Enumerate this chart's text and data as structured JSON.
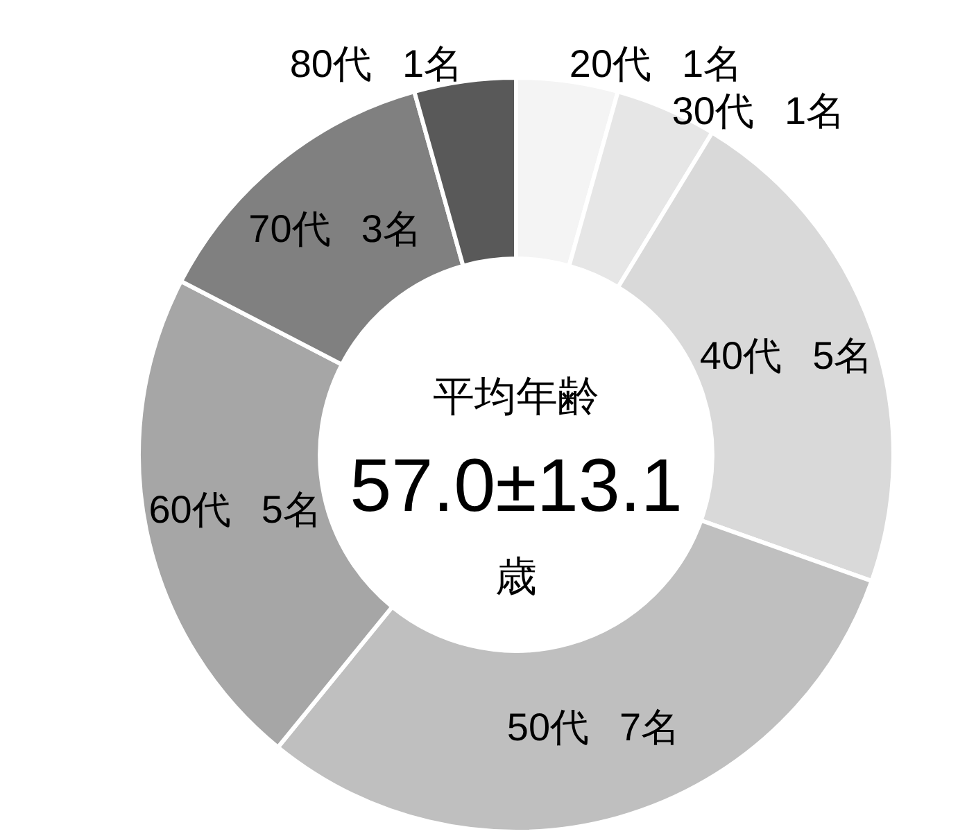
{
  "chart_data": {
    "type": "donut",
    "categories": [
      "20代",
      "30代",
      "40代",
      "50代",
      "60代",
      "70代",
      "80代"
    ],
    "values": [
      1,
      1,
      5,
      7,
      5,
      3,
      1
    ],
    "value_labels": [
      "1名",
      "1名",
      "5名",
      "7名",
      "5名",
      "3名",
      "1名"
    ],
    "colors": [
      "#f4f4f4",
      "#e6e6e6",
      "#d9d9d9",
      "#bfbfbf",
      "#a6a6a6",
      "#808080",
      "#595959"
    ],
    "annotations": [
      "平均年齢",
      "57.0±13.1",
      "歳"
    ]
  }
}
